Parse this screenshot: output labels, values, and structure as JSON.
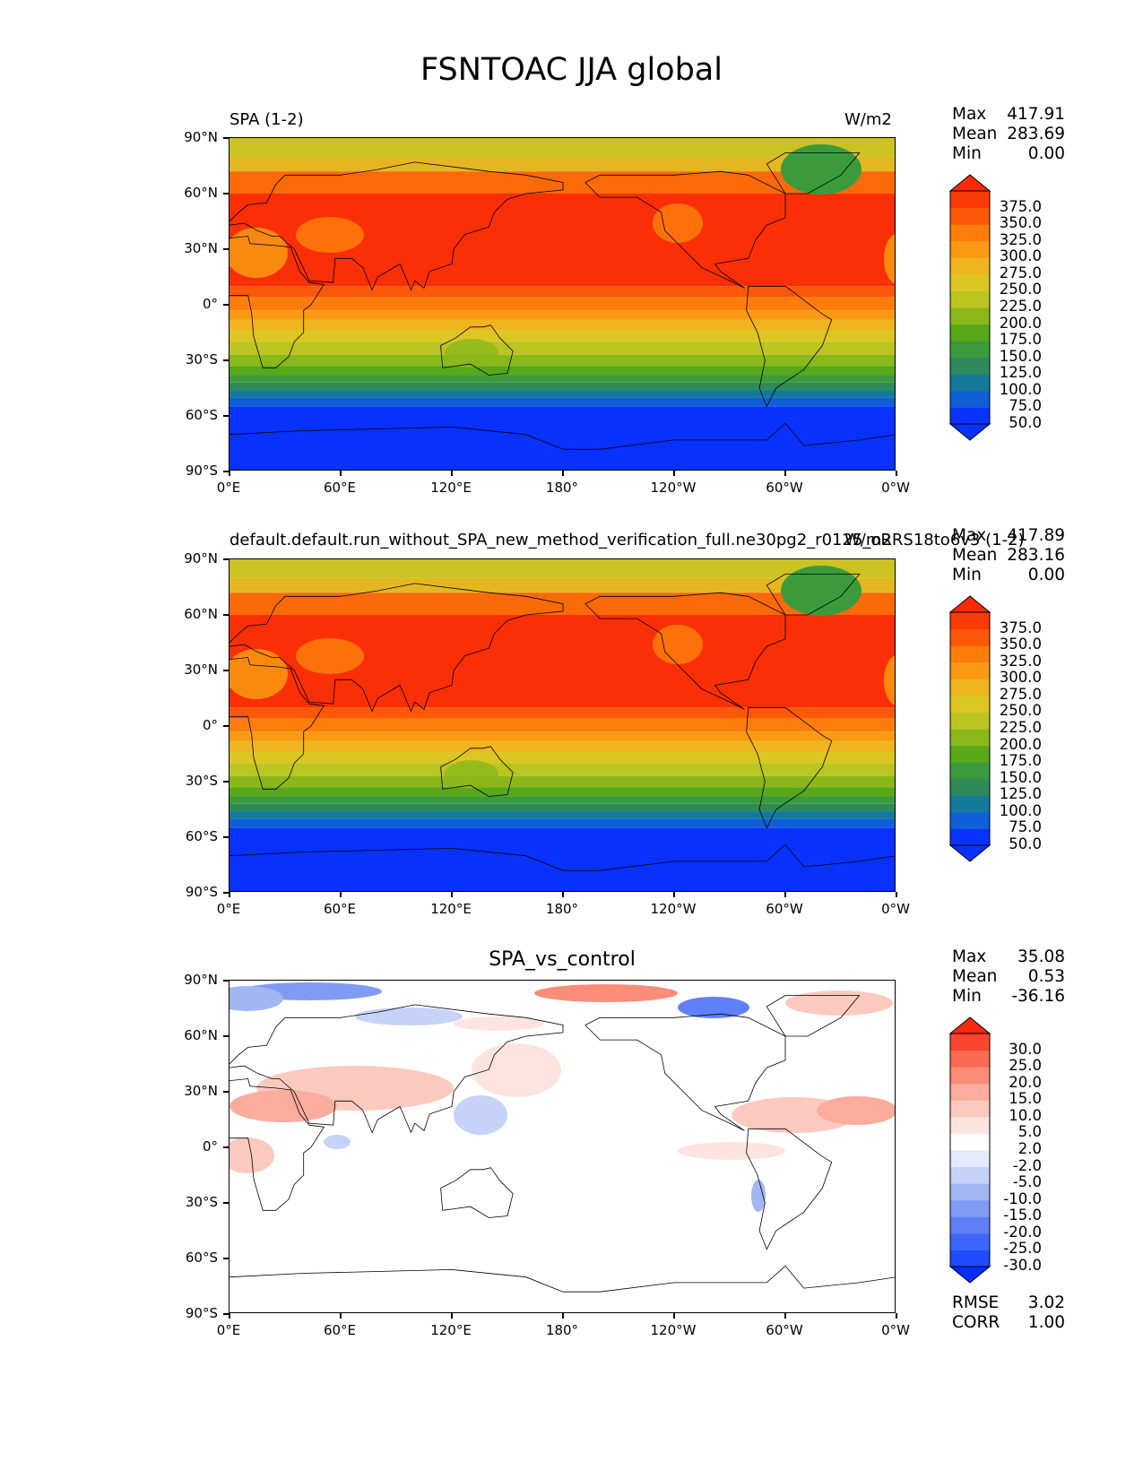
{
  "title": "FSNTOAC JJA global",
  "axes": {
    "lat_ticks": [
      "90°N",
      "60°N",
      "30°N",
      "0°",
      "30°S",
      "60°S",
      "90°S"
    ],
    "lon_ticks": [
      "0°E",
      "60°E",
      "120°E",
      "180°",
      "120°W",
      "60°W",
      "0°W"
    ]
  },
  "panels": [
    {
      "left_title": "SPA (1-2)",
      "center_title": "",
      "units": "W/m2",
      "stats": {
        "max_label": "Max",
        "max": "417.91",
        "mean_label": "Mean",
        "mean": "283.69",
        "min_label": "Min",
        "min": "0.00"
      },
      "colorbar": {
        "labels": [
          "375.0",
          "350.0",
          "325.0",
          "300.0",
          "275.0",
          "250.0",
          "225.0",
          "200.0",
          "175.0",
          "150.0",
          "125.0",
          "100.0",
          "75.0",
          "50.0"
        ],
        "colors": [
          "#0832ff",
          "#0832ff",
          "#0f5fd6",
          "#137a9a",
          "#2e8a5a",
          "#3b9b3c",
          "#58a81a",
          "#8bb819",
          "#bcc422",
          "#dcc722",
          "#f0b41e",
          "#f99a12",
          "#fd7d0c",
          "#fc5808",
          "#fb3a06",
          "#fb2a04"
        ]
      }
    },
    {
      "left_title": "default.default.run_without_SPA_new_method_verification_full.ne30pg2_r0125_oRRS18to6v3 (1-2)",
      "center_title": "",
      "units": "W/m2",
      "stats": {
        "max_label": "Max",
        "max": "417.89",
        "mean_label": "Mean",
        "mean": "283.16",
        "min_label": "Min",
        "min": "0.00"
      },
      "colorbar": {
        "labels": [
          "375.0",
          "350.0",
          "325.0",
          "300.0",
          "275.0",
          "250.0",
          "225.0",
          "200.0",
          "175.0",
          "150.0",
          "125.0",
          "100.0",
          "75.0",
          "50.0"
        ],
        "colors": [
          "#0832ff",
          "#0832ff",
          "#0f5fd6",
          "#137a9a",
          "#2e8a5a",
          "#3b9b3c",
          "#58a81a",
          "#8bb819",
          "#bcc422",
          "#dcc722",
          "#f0b41e",
          "#f99a12",
          "#fd7d0c",
          "#fc5808",
          "#fb3a06",
          "#fb2a04"
        ]
      }
    },
    {
      "left_title": "",
      "center_title": "SPA_vs_control",
      "units": "",
      "stats": {
        "max_label": "Max",
        "max": "35.08",
        "mean_label": "Mean",
        "mean": "0.53",
        "min_label": "Min",
        "min": "-36.16"
      },
      "extra_stats": {
        "rmse_label": "RMSE",
        "rmse": "3.02",
        "corr_label": "CORR",
        "corr": "1.00"
      },
      "colorbar": {
        "labels": [
          "30.0",
          "25.0",
          "20.0",
          "15.0",
          "10.0",
          "5.0",
          "2.0",
          "-2.0",
          "-5.0",
          "-10.0",
          "-15.0",
          "-20.0",
          "-25.0",
          "-30.0"
        ],
        "colors": [
          "#0b2cff",
          "#1f4cff",
          "#3e66fb",
          "#5f80f6",
          "#809bf3",
          "#a3b6f4",
          "#c6d2f8",
          "#e4eafb",
          "#ffffff",
          "#fde4df",
          "#fcc9bf",
          "#fbac9d",
          "#fa8c78",
          "#f96a52",
          "#f8472e",
          "#f82a10"
        ]
      }
    }
  ]
}
